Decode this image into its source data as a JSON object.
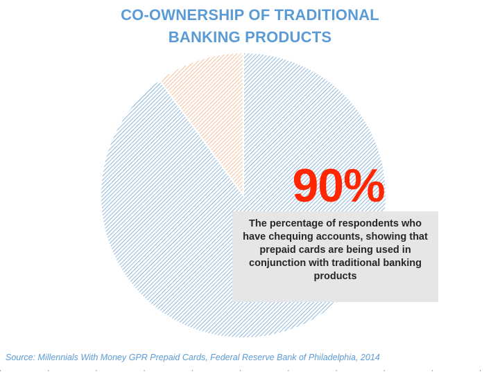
{
  "title_lines": [
    "CO-OWNERSHIP OF TRADITIONAL",
    "BANKING PRODUCTS"
  ],
  "callout": {
    "value": "90%",
    "text": "The percentage of respondents who have chequing accounts, showing that prepaid cards are being used in conjunction with traditional banking products"
  },
  "source": "Source: Millennials With Money GPR Prepaid Cards, Federal Reserve Bank of Philadelphia, 2014",
  "colors": {
    "title": "#5b9bd5",
    "value": "#ff2600",
    "slice_main": "#5b9bd5",
    "slice_small": "#f4a46c",
    "callout_bg": "#e6e6e6"
  },
  "chart_data": {
    "type": "pie",
    "title": "CO-OWNERSHIP OF TRADITIONAL BANKING PRODUCTS",
    "slices": [
      {
        "value": 90,
        "color": "#5b9bd5",
        "pattern": "diagonal-hatch"
      },
      {
        "value": 10,
        "color": "#f4a46c",
        "pattern": "diagonal-hatch"
      }
    ],
    "start": "12 o'clock, clockwise",
    "legend": "none"
  }
}
